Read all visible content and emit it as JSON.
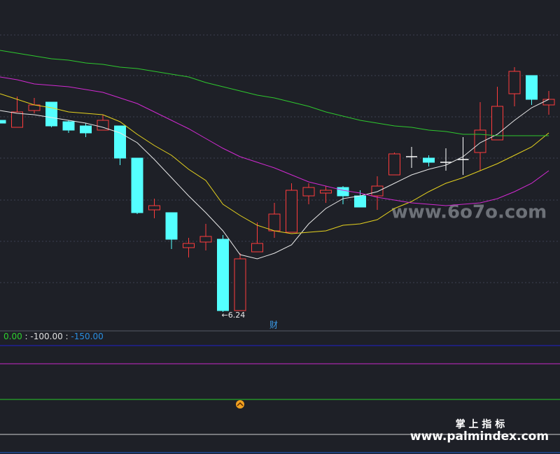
{
  "chart_data": {
    "type": "candlestick",
    "ylim": [
      6.14,
      8.47
    ],
    "up_color": "#ff3c3c",
    "down_color": "#54ffff",
    "flat_color": "#ffffff",
    "open": [
      7.61,
      7.56,
      7.68,
      7.74,
      7.6,
      7.57,
      7.54,
      7.57,
      7.34,
      6.97,
      6.95,
      6.7,
      6.74,
      6.76,
      6.25,
      6.67,
      6.82,
      6.81,
      7.07,
      7.09,
      7.13,
      7.07,
      7.07,
      7.22,
      7.35,
      7.34,
      7.31,
      7.33,
      7.38,
      7.47,
      7.8,
      7.93,
      7.72
    ],
    "high": [
      7.61,
      7.78,
      7.77,
      7.74,
      7.61,
      7.59,
      7.65,
      7.57,
      7.34,
      7.05,
      6.95,
      6.77,
      6.87,
      6.79,
      6.66,
      6.88,
      7.02,
      7.16,
      7.16,
      7.14,
      7.14,
      7.11,
      7.21,
      7.38,
      7.42,
      7.36,
      7.41,
      7.49,
      7.74,
      7.85,
      7.99,
      7.93,
      7.82
    ],
    "low": [
      7.59,
      7.56,
      7.66,
      7.56,
      7.52,
      7.49,
      7.54,
      7.29,
      6.94,
      6.91,
      6.69,
      6.63,
      6.68,
      6.24,
      6.25,
      6.67,
      6.77,
      6.81,
      7.01,
      7.02,
      7.01,
      6.99,
      6.97,
      7.22,
      7.27,
      7.28,
      7.25,
      7.22,
      7.25,
      7.47,
      7.71,
      7.72,
      7.65
    ],
    "close": [
      7.59,
      7.67,
      7.72,
      7.57,
      7.54,
      7.52,
      7.61,
      7.34,
      6.95,
      7.0,
      6.76,
      6.73,
      6.78,
      6.25,
      6.62,
      6.73,
      6.94,
      7.11,
      7.13,
      7.11,
      7.07,
      6.99,
      7.14,
      7.37,
      7.35,
      7.31,
      7.31,
      7.33,
      7.54,
      7.71,
      7.96,
      7.76,
      7.76
    ],
    "series": [
      {
        "color": "#e8e8e8",
        "values": [
          7.68,
          7.66,
          7.65,
          7.63,
          7.61,
          7.59,
          7.56,
          7.52,
          7.45,
          7.33,
          7.2,
          7.07,
          6.95,
          6.82,
          6.65,
          6.62,
          6.66,
          6.72,
          6.87,
          6.98,
          7.05,
          7.07,
          7.1,
          7.16,
          7.22,
          7.26,
          7.29,
          7.35,
          7.45,
          7.51,
          7.61,
          7.7,
          7.76
        ]
      },
      {
        "color": "#e6d21e",
        "values": [
          7.8,
          7.76,
          7.72,
          7.7,
          7.67,
          7.66,
          7.65,
          7.6,
          7.51,
          7.43,
          7.36,
          7.26,
          7.18,
          7.01,
          6.93,
          6.86,
          6.82,
          6.8,
          6.81,
          6.82,
          6.86,
          6.87,
          6.9,
          6.98,
          7.03,
          7.1,
          7.16,
          7.2,
          7.25,
          7.3,
          7.36,
          7.42,
          7.52
        ]
      },
      {
        "color": "#d22ad2",
        "values": [
          7.92,
          7.9,
          7.87,
          7.86,
          7.85,
          7.83,
          7.81,
          7.77,
          7.73,
          7.67,
          7.61,
          7.55,
          7.48,
          7.41,
          7.35,
          7.31,
          7.27,
          7.22,
          7.17,
          7.14,
          7.11,
          7.09,
          7.06,
          7.04,
          7.02,
          7.01,
          7.0,
          7.01,
          7.02,
          7.05,
          7.1,
          7.16,
          7.25
        ]
      },
      {
        "color": "#2ec82e",
        "values": [
          8.11,
          8.09,
          8.07,
          8.05,
          8.04,
          8.02,
          8.01,
          7.99,
          7.98,
          7.96,
          7.94,
          7.92,
          7.88,
          7.85,
          7.82,
          7.79,
          7.77,
          7.74,
          7.71,
          7.67,
          7.64,
          7.61,
          7.59,
          7.57,
          7.56,
          7.54,
          7.53,
          7.51,
          7.51,
          7.5,
          7.5,
          7.5,
          7.5
        ]
      }
    ],
    "low_annotation": {
      "value": 6.24,
      "label": "←6.24"
    },
    "marker_text": "财",
    "indicator_labels": [
      {
        "value": 0,
        "label": "0.00",
        "color": "#2ed02e"
      },
      {
        "value": -100,
        "label": "-100.00",
        "color": "#e0e0e0"
      },
      {
        "value": -150,
        "label": "-150.00",
        "color": "#2a8ee0"
      }
    ],
    "separator": " : ",
    "watermark": "www.6o7o.com",
    "brand_title": "掌 上 指 标",
    "brand_url": "www.palmindex.com"
  }
}
